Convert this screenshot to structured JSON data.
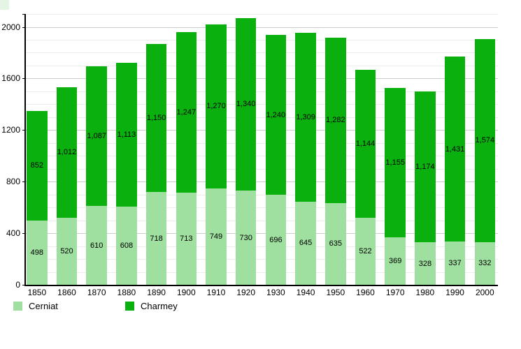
{
  "chart_data": {
    "type": "bar",
    "stacked": true,
    "title": "",
    "xlabel": "",
    "ylabel": "",
    "categories": [
      "1850",
      "1860",
      "1870",
      "1880",
      "1890",
      "1900",
      "1910",
      "1920",
      "1930",
      "1940",
      "1950",
      "1960",
      "1970",
      "1980",
      "1990",
      "2000"
    ],
    "series": [
      {
        "name": "Cerniat",
        "color": "#9fdf9f",
        "values": [
          498,
          520,
          610,
          608,
          718,
          713,
          749,
          730,
          696,
          645,
          635,
          522,
          369,
          328,
          337,
          332
        ],
        "labels": [
          "498",
          "520",
          "610",
          "608",
          "718",
          "713",
          "749",
          "730",
          "696",
          "645",
          "635",
          "522",
          "369",
          "328",
          "337",
          "332"
        ]
      },
      {
        "name": "Charmey",
        "color": "#0ab00e",
        "values": [
          852,
          1012,
          1087,
          1113,
          1150,
          1247,
          1270,
          1340,
          1240,
          1309,
          1282,
          1144,
          1155,
          1174,
          1431,
          1574
        ],
        "labels": [
          "852",
          "1,012",
          "1,087",
          "1,113",
          "1,150",
          "1,247",
          "1,270",
          "1,340",
          "1,240",
          "1,309",
          "1,282",
          "1,144",
          "1,155",
          "1,174",
          "1,431",
          "1,574"
        ]
      }
    ],
    "ylim": [
      0,
      2100
    ],
    "yticks": [
      0,
      400,
      800,
      1200,
      1600,
      2000
    ],
    "ytick_labels": [
      "0",
      "400",
      "800",
      "1200",
      "1600",
      "2000"
    ],
    "minor_grid_step": 100,
    "grid": true,
    "legend_position": "bottom"
  },
  "colors": {
    "background": "#ffffff",
    "axis": "#000000",
    "major_gridline": "#cccccc",
    "minor_gridline": "#ebebeb",
    "corner_artifact": "#e4f5e4",
    "label_text": "#000000"
  }
}
